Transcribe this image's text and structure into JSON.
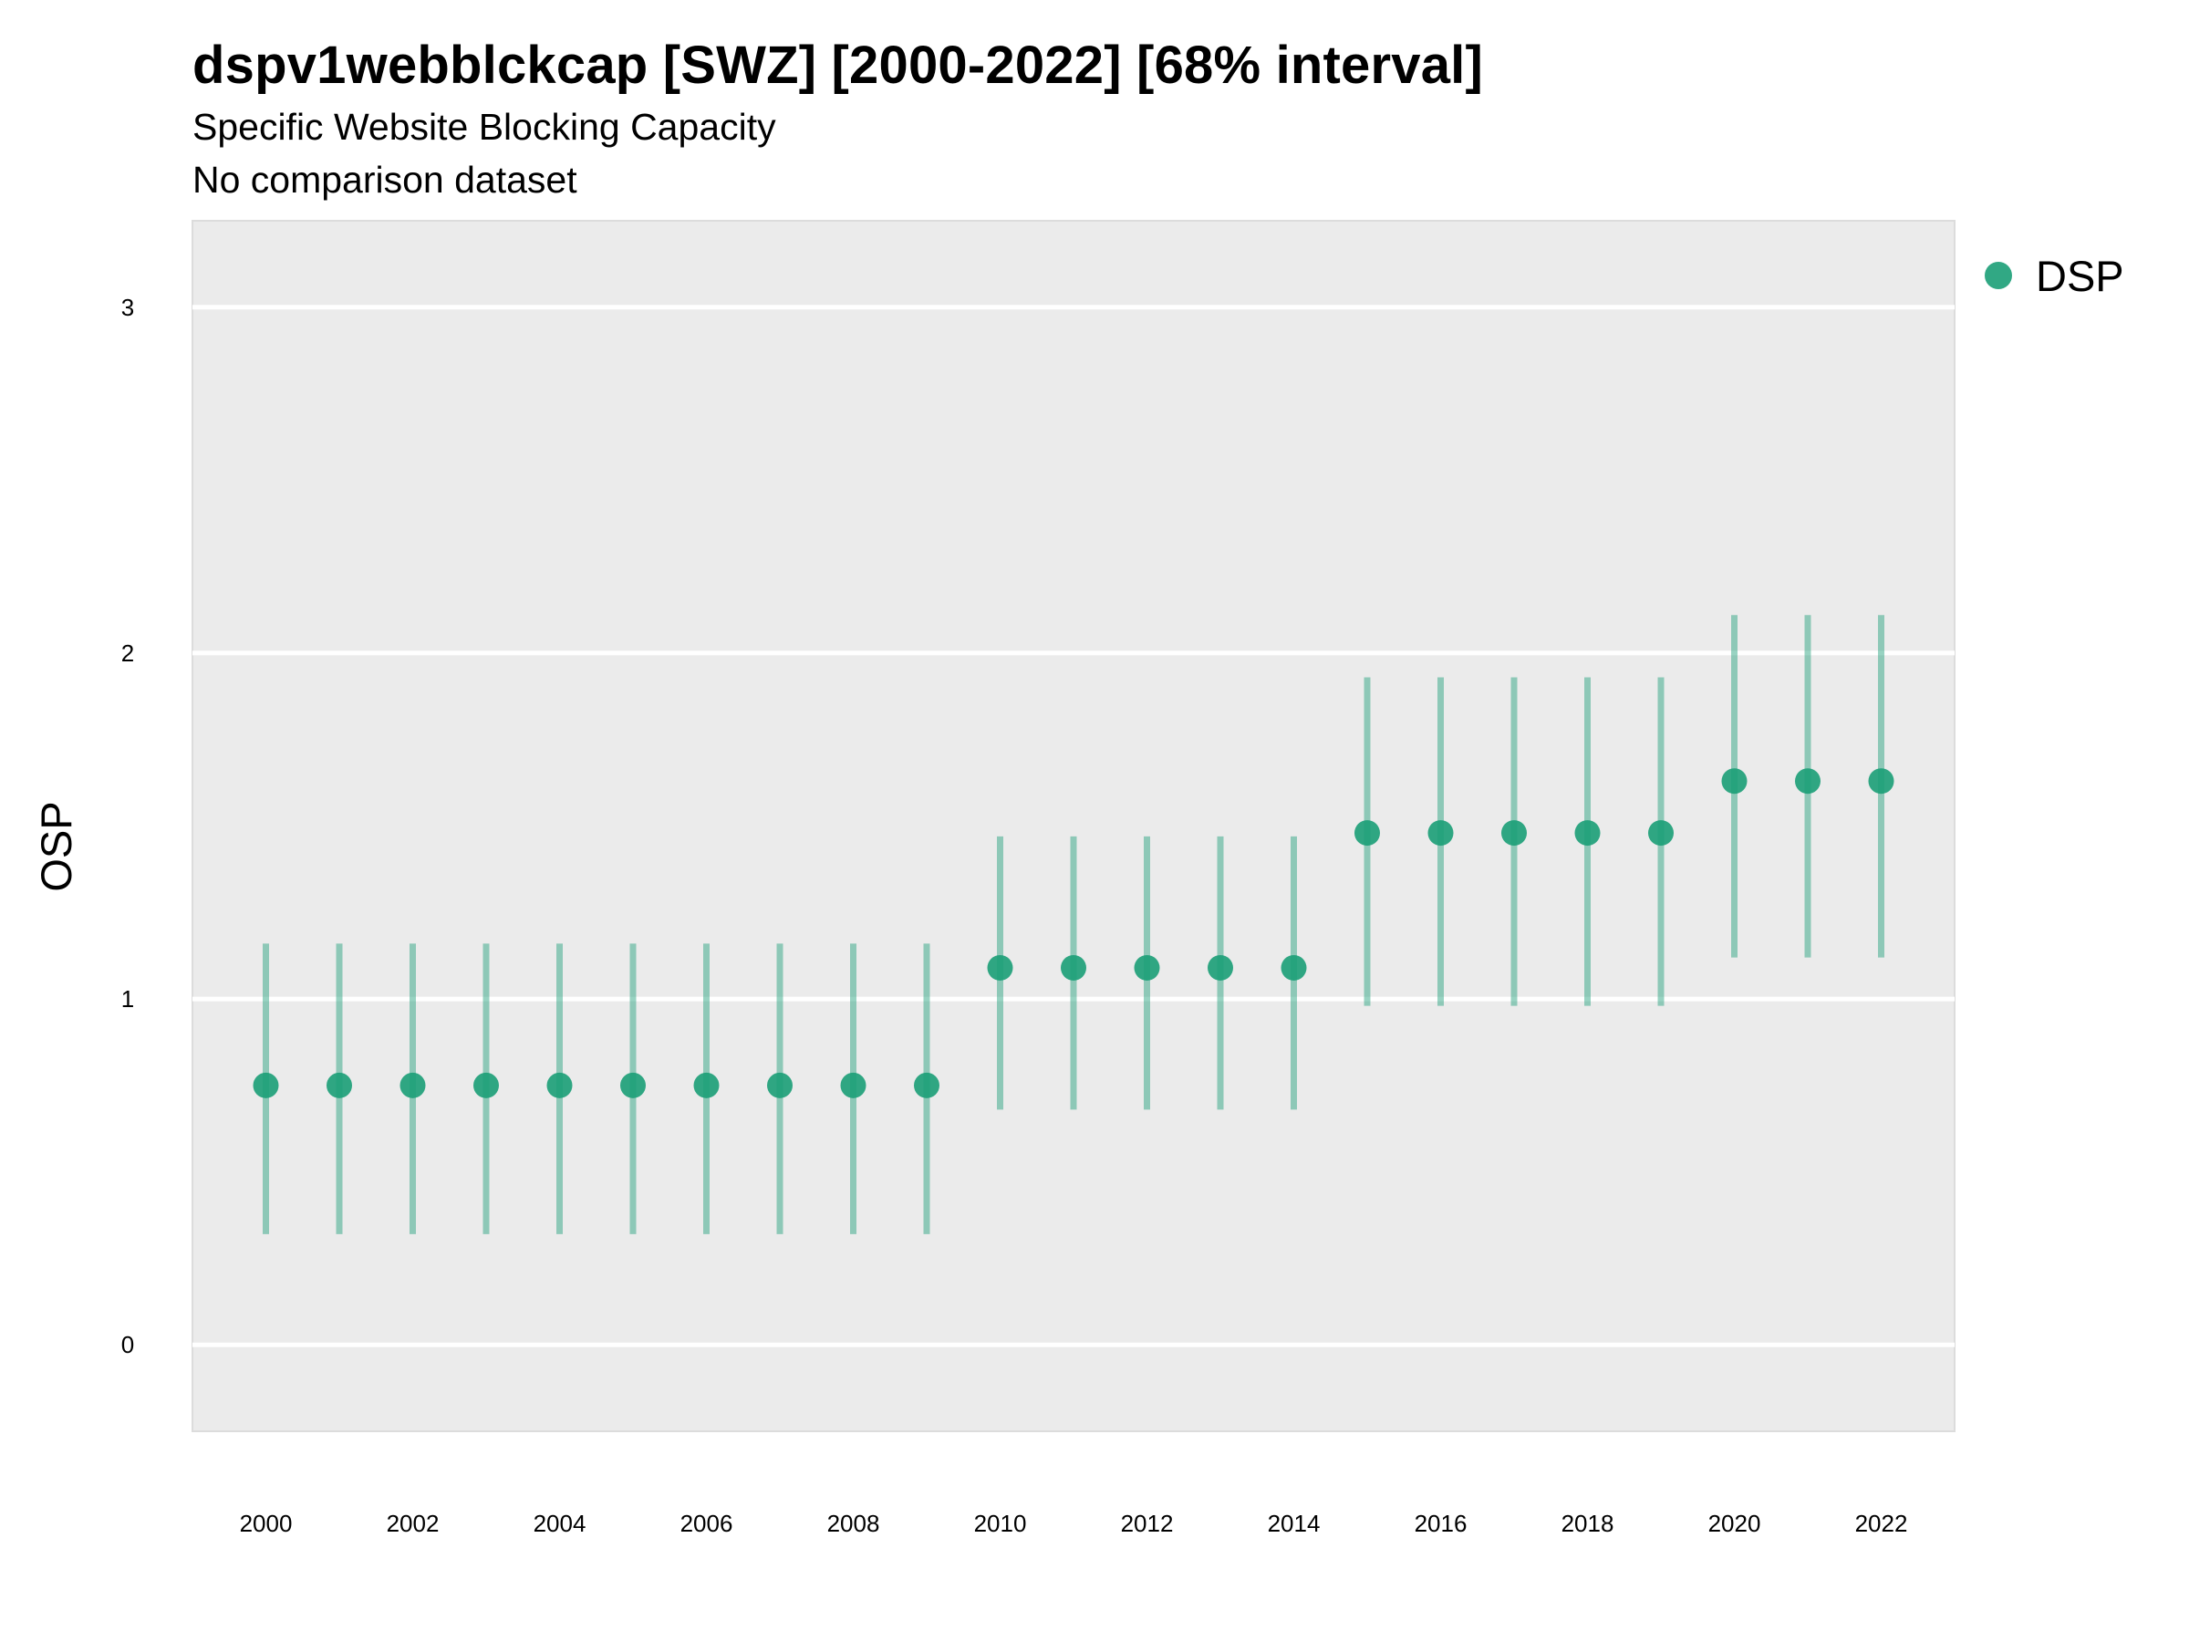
{
  "title": "dspv1webblckcap [SWZ] [2000-2022] [68% interval]",
  "subtitle": "Specific Website Blocking Capacity",
  "caption": "No comparison dataset",
  "colors": {
    "series": "#1b9e77",
    "panel": "#ebebeb",
    "grid": "#ffffff"
  },
  "chart_data": {
    "type": "scatter",
    "ylabel": "OSP",
    "xlim": [
      1999,
      2023
    ],
    "ylim": [
      -0.25,
      3.25
    ],
    "grid": true,
    "legend_position": "right",
    "x_ticks": [
      "2000",
      "2002",
      "2004",
      "2006",
      "2008",
      "2010",
      "2012",
      "2014",
      "2016",
      "2018",
      "2020",
      "2022"
    ],
    "y_ticks": [
      "0",
      "1",
      "2",
      "3"
    ],
    "series": [
      {
        "name": "DSP",
        "color": "#1b9e77",
        "x": [
          2000,
          2001,
          2002,
          2003,
          2004,
          2005,
          2006,
          2007,
          2008,
          2009,
          2010,
          2011,
          2012,
          2013,
          2014,
          2015,
          2016,
          2017,
          2018,
          2019,
          2020,
          2021,
          2022
        ],
        "y": [
          0.75,
          0.75,
          0.75,
          0.75,
          0.75,
          0.75,
          0.75,
          0.75,
          0.75,
          0.75,
          1.09,
          1.09,
          1.09,
          1.09,
          1.09,
          1.48,
          1.48,
          1.48,
          1.48,
          1.48,
          1.63,
          1.63,
          1.63
        ],
        "lower": [
          0.32,
          0.32,
          0.32,
          0.32,
          0.32,
          0.32,
          0.32,
          0.32,
          0.32,
          0.32,
          0.68,
          0.68,
          0.68,
          0.68,
          0.68,
          0.98,
          0.98,
          0.98,
          0.98,
          0.98,
          1.12,
          1.12,
          1.12
        ],
        "upper": [
          1.16,
          1.16,
          1.16,
          1.16,
          1.16,
          1.16,
          1.16,
          1.16,
          1.16,
          1.16,
          1.47,
          1.47,
          1.47,
          1.47,
          1.47,
          1.93,
          1.93,
          1.93,
          1.93,
          1.93,
          2.11,
          2.11,
          2.11
        ]
      }
    ]
  }
}
